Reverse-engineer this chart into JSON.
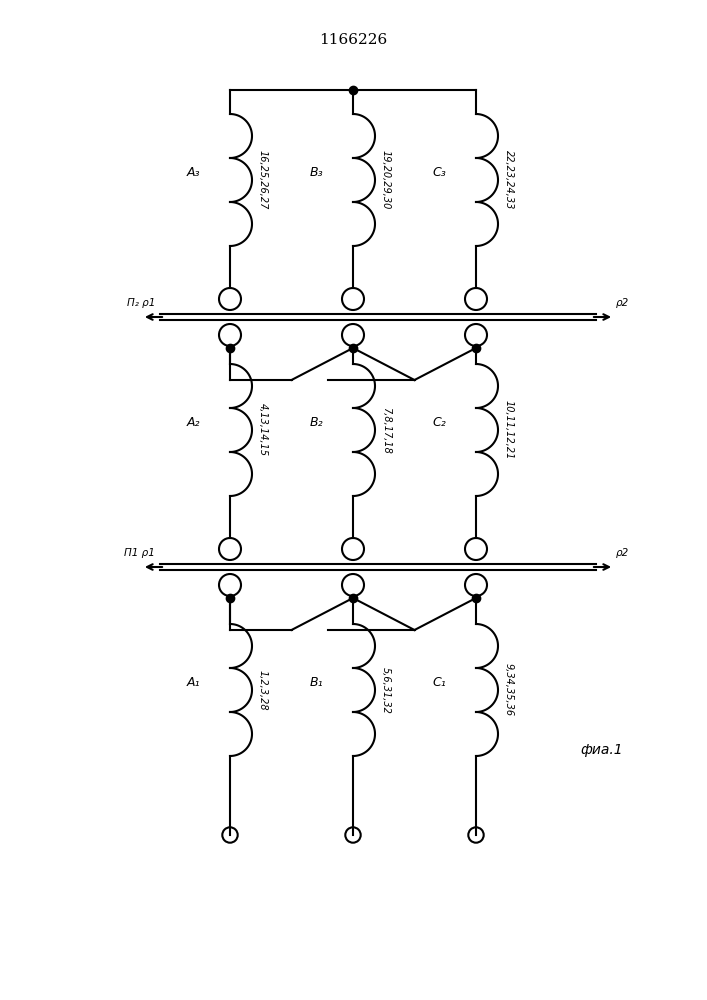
{
  "title": "1166226",
  "fig_label": "фиа.1",
  "bg_color": "#ffffff",
  "line_color": "#000000",
  "coil_labels": {
    "A1": {
      "label": "A₁",
      "nums": "1,2,3,28"
    },
    "B1": {
      "label": "B₁",
      "nums": "5,6,31,32"
    },
    "C1": {
      "label": "C₁",
      "nums": "9,34,35,36"
    },
    "A2": {
      "label": "A₂",
      "nums": "4,13,14,15"
    },
    "B2": {
      "label": "B₂",
      "nums": "7,8,17,18"
    },
    "C2": {
      "label": "C₂",
      "nums": "10,11,12,21"
    },
    "A3": {
      "label": "A₃",
      "nums": "16,25,26,27"
    },
    "B3": {
      "label": "B₃",
      "nums": "19,20,29,30"
    },
    "C3": {
      "label": "C₃",
      "nums": "22,23,24,33"
    }
  },
  "sw2_label_left": "П₂ ρ1",
  "sw2_label_right": "ρ2",
  "sw1_label_left": "П1 ρ1",
  "sw1_label_right": "ρ2"
}
